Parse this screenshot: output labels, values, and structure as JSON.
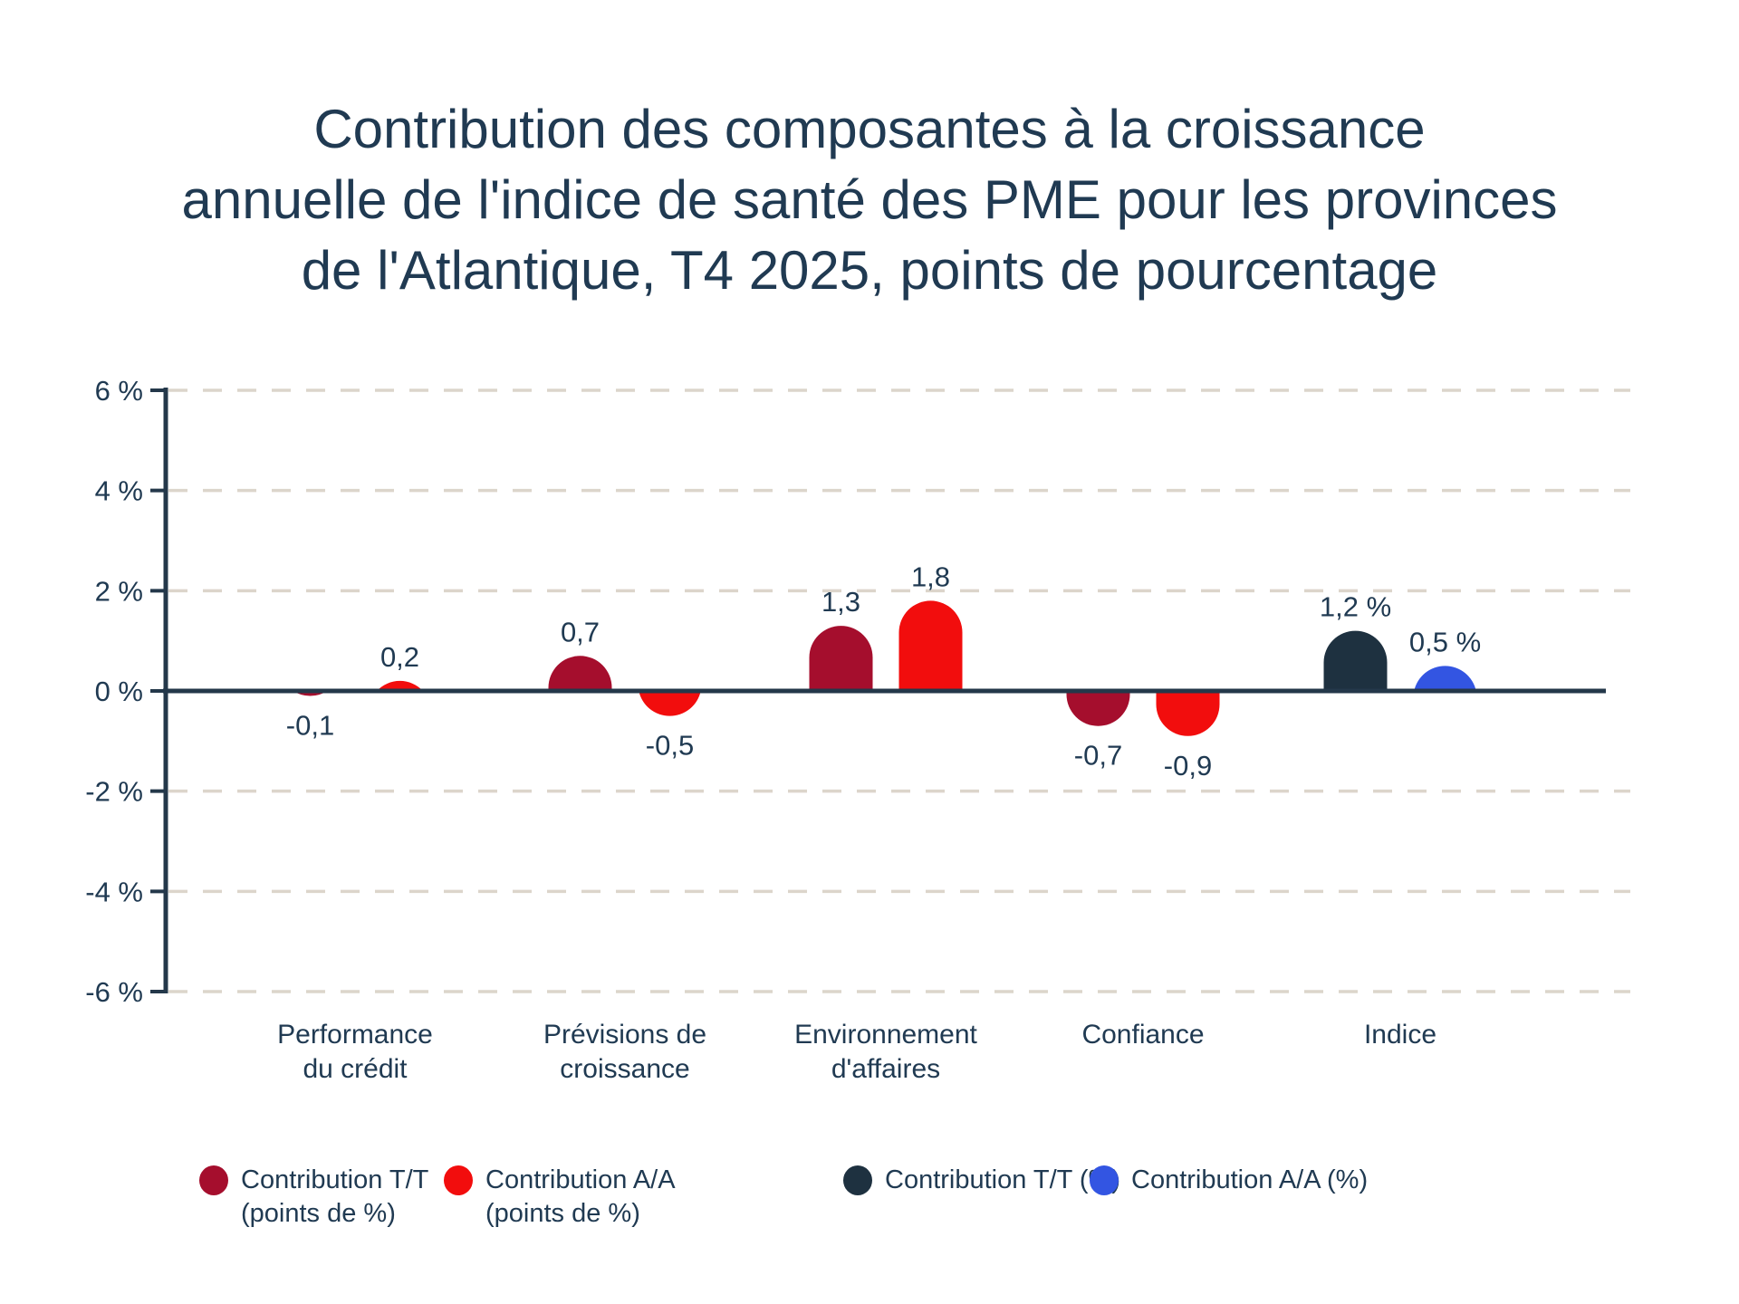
{
  "title": {
    "lines": [
      "Contribution des composantes à la croissance",
      "annuelle de l'indice de santé des PME pour les provinces",
      "de l'Atlantique, T4 2025, points de pourcentage"
    ]
  },
  "chart_data": {
    "type": "bar",
    "title": "Contribution des composantes à la croissance annuelle de l'indice de santé des PME pour les provinces de l'Atlantique, T4 2025, points de pourcentage",
    "ylim": [
      -6,
      6
    ],
    "grid": "dashed-horizontal",
    "legend_position": "bottom",
    "y_tick_values": [
      6,
      4,
      2,
      0,
      -2,
      -4,
      -6
    ],
    "y_tick_labels": [
      "6 %",
      "4 %",
      "2 %",
      "0 %",
      "-2 %",
      "-4 %",
      "-6 %"
    ],
    "categories": [
      "Performance du crédit",
      "Prévisions de croissance",
      "Environnement d'affaires",
      "Confiance",
      "Indice"
    ],
    "category_label_lines": [
      [
        "Performance",
        "du crédit"
      ],
      [
        "Prévisions de",
        "croissance"
      ],
      [
        "Environnement",
        "d'affaires"
      ],
      [
        "Confiance"
      ],
      [
        "Indice"
      ]
    ],
    "series": [
      {
        "name": "Contribution T/T (points de %)",
        "color": "#A50E2D",
        "values": [
          -0.1,
          0.7,
          1.3,
          -0.7,
          null
        ]
      },
      {
        "name": "Contribution A/A (points de %)",
        "color": "#F20D0D",
        "values": [
          0.2,
          -0.5,
          1.8,
          -0.9,
          null
        ]
      },
      {
        "name": "Contribution T/T (%)",
        "color": "#1E3140",
        "values": [
          null,
          null,
          null,
          null,
          1.2
        ]
      },
      {
        "name": "Contribution A/A (%)",
        "color": "#3355E2",
        "values": [
          null,
          null,
          null,
          null,
          0.5
        ]
      }
    ],
    "value_labels": [
      [
        "-0,1",
        "0,2"
      ],
      [
        "0,7",
        "-0,5"
      ],
      [
        "1,3",
        "1,8"
      ],
      [
        "-0,7",
        "-0,9"
      ],
      [
        "1,2 %",
        "0,5 %"
      ]
    ]
  },
  "legend": {
    "entries": [
      {
        "lines": [
          "Contribution T/T",
          "(points de %)"
        ],
        "color": "#A50E2D"
      },
      {
        "lines": [
          "Contribution A/A",
          "(points de %)"
        ],
        "color": "#F20D0D"
      },
      {
        "lines": [
          "Contribution T/T (%)"
        ],
        "color": "#1E3140"
      },
      {
        "lines": [
          "Contribution A/A (%)"
        ],
        "color": "#3355E2"
      }
    ]
  },
  "colors": {
    "text": "#203A52",
    "axis": "#24384A",
    "grid": "#DCD5CB",
    "background": "#FFFFFF"
  }
}
